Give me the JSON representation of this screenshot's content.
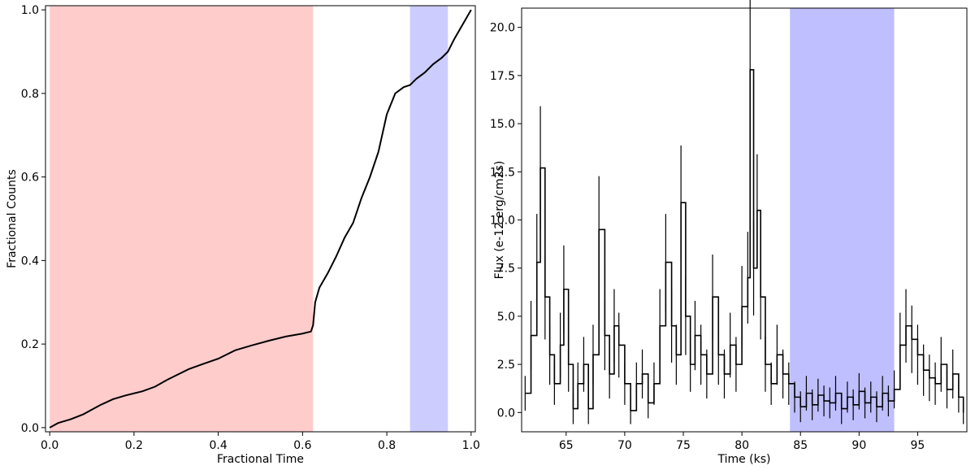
{
  "chart_data": [
    {
      "type": "line",
      "xlabel": "Fractional Time",
      "ylabel": "Fractional Counts",
      "xlim": [
        -0.01,
        1.01
      ],
      "ylim": [
        -0.01,
        1.01
      ],
      "xticks": [
        0.0,
        0.2,
        0.4,
        0.6,
        0.8,
        1.0
      ],
      "xtick_labels": [
        "0.0",
        "0.2",
        "0.4",
        "0.6",
        "0.8",
        "1.0"
      ],
      "yticks": [
        0.0,
        0.2,
        0.4,
        0.6,
        0.8,
        1.0
      ],
      "ytick_labels": [
        "0.0",
        "0.2",
        "0.4",
        "0.6",
        "0.8",
        "1.0"
      ],
      "grid": false,
      "shaded_regions": [
        {
          "x0": 0.0,
          "x1": 0.625,
          "color": "#ff0000",
          "alpha": 0.2
        },
        {
          "x0": 0.855,
          "x1": 0.945,
          "color": "#0000ff",
          "alpha": 0.2
        }
      ],
      "line_color": "#000000",
      "series_points": [
        [
          0.0,
          0.0
        ],
        [
          0.02,
          0.011
        ],
        [
          0.05,
          0.02
        ],
        [
          0.08,
          0.032
        ],
        [
          0.1,
          0.043
        ],
        [
          0.12,
          0.054
        ],
        [
          0.15,
          0.068
        ],
        [
          0.18,
          0.077
        ],
        [
          0.2,
          0.082
        ],
        [
          0.22,
          0.087
        ],
        [
          0.25,
          0.098
        ],
        [
          0.28,
          0.115
        ],
        [
          0.3,
          0.125
        ],
        [
          0.33,
          0.14
        ],
        [
          0.36,
          0.151
        ],
        [
          0.4,
          0.165
        ],
        [
          0.44,
          0.185
        ],
        [
          0.48,
          0.197
        ],
        [
          0.52,
          0.208
        ],
        [
          0.56,
          0.218
        ],
        [
          0.6,
          0.225
        ],
        [
          0.62,
          0.23
        ],
        [
          0.625,
          0.245
        ],
        [
          0.63,
          0.3
        ],
        [
          0.64,
          0.335
        ],
        [
          0.66,
          0.37
        ],
        [
          0.68,
          0.41
        ],
        [
          0.7,
          0.455
        ],
        [
          0.72,
          0.49
        ],
        [
          0.74,
          0.55
        ],
        [
          0.76,
          0.6
        ],
        [
          0.78,
          0.66
        ],
        [
          0.8,
          0.75
        ],
        [
          0.82,
          0.8
        ],
        [
          0.84,
          0.815
        ],
        [
          0.855,
          0.82
        ],
        [
          0.87,
          0.835
        ],
        [
          0.89,
          0.85
        ],
        [
          0.91,
          0.87
        ],
        [
          0.93,
          0.885
        ],
        [
          0.945,
          0.9
        ],
        [
          0.96,
          0.93
        ],
        [
          0.98,
          0.965
        ],
        [
          1.0,
          1.0
        ]
      ]
    },
    {
      "type": "line",
      "xlabel": "Time (ks)",
      "ylabel": "Flux (e-12 erg/cm2s)",
      "xlim": [
        61.2,
        99.2
      ],
      "ylim": [
        -1.0,
        21.0
      ],
      "xticks": [
        65,
        70,
        75,
        80,
        85,
        90,
        95
      ],
      "xtick_labels": [
        "65",
        "70",
        "75",
        "80",
        "85",
        "90",
        "95"
      ],
      "yticks": [
        0.0,
        2.5,
        5.0,
        7.5,
        10.0,
        12.5,
        15.0,
        17.5,
        20.0
      ],
      "ytick_labels": [
        "0.0",
        "2.5",
        "5.0",
        "7.5",
        "10.0",
        "12.5",
        "15.0",
        "17.5",
        "20.0"
      ],
      "grid": false,
      "shaded_regions": [
        {
          "x0": 84.1,
          "x1": 93.0,
          "color": "#0000ff",
          "alpha": 0.25
        }
      ],
      "line_color": "#000000",
      "series_points": [
        [
          61.5,
          1.0
        ],
        [
          62.0,
          4.0
        ],
        [
          62.5,
          7.8
        ],
        [
          62.8,
          12.7
        ],
        [
          63.2,
          6.0
        ],
        [
          63.6,
          3.0
        ],
        [
          64.0,
          1.5
        ],
        [
          64.5,
          3.5
        ],
        [
          64.8,
          6.4
        ],
        [
          65.2,
          2.5
        ],
        [
          65.6,
          0.2
        ],
        [
          66.0,
          1.5
        ],
        [
          66.5,
          2.5
        ],
        [
          66.9,
          0.2
        ],
        [
          67.3,
          3.0
        ],
        [
          67.8,
          9.5
        ],
        [
          68.3,
          4.0
        ],
        [
          68.7,
          2.0
        ],
        [
          69.1,
          4.5
        ],
        [
          69.5,
          3.5
        ],
        [
          70.0,
          1.5
        ],
        [
          70.5,
          0.1
        ],
        [
          71.0,
          1.5
        ],
        [
          71.5,
          2.0
        ],
        [
          72.0,
          0.5
        ],
        [
          72.5,
          1.5
        ],
        [
          73.0,
          4.5
        ],
        [
          73.5,
          7.8
        ],
        [
          74.0,
          4.5
        ],
        [
          74.4,
          3.0
        ],
        [
          74.8,
          10.9
        ],
        [
          75.2,
          5.0
        ],
        [
          75.6,
          2.5
        ],
        [
          76.0,
          4.0
        ],
        [
          76.5,
          3.0
        ],
        [
          77.0,
          2.0
        ],
        [
          77.5,
          6.0
        ],
        [
          78.0,
          3.0
        ],
        [
          78.5,
          2.0
        ],
        [
          79.0,
          3.5
        ],
        [
          79.5,
          2.5
        ],
        [
          80.0,
          5.5
        ],
        [
          80.5,
          7.0
        ],
        [
          80.7,
          17.8
        ],
        [
          81.0,
          7.5
        ],
        [
          81.3,
          10.5
        ],
        [
          81.6,
          6.0
        ],
        [
          82.0,
          2.5
        ],
        [
          82.5,
          1.5
        ],
        [
          83.0,
          3.0
        ],
        [
          83.5,
          2.0
        ],
        [
          84.0,
          1.5
        ],
        [
          84.5,
          0.8
        ],
        [
          85.0,
          0.3
        ],
        [
          85.5,
          1.0
        ],
        [
          86.0,
          0.4
        ],
        [
          86.5,
          0.9
        ],
        [
          87.0,
          0.6
        ],
        [
          87.5,
          0.5
        ],
        [
          88.0,
          1.0
        ],
        [
          88.5,
          0.2
        ],
        [
          89.0,
          0.8
        ],
        [
          89.5,
          0.4
        ],
        [
          90.0,
          1.1
        ],
        [
          90.5,
          0.5
        ],
        [
          91.0,
          0.8
        ],
        [
          91.5,
          0.3
        ],
        [
          92.0,
          1.0
        ],
        [
          92.5,
          0.6
        ],
        [
          93.0,
          1.2
        ],
        [
          93.5,
          3.5
        ],
        [
          94.0,
          4.5
        ],
        [
          94.5,
          3.8
        ],
        [
          95.0,
          3.0
        ],
        [
          95.5,
          2.2
        ],
        [
          96.0,
          1.8
        ],
        [
          96.5,
          1.5
        ],
        [
          97.0,
          2.5
        ],
        [
          97.5,
          1.2
        ],
        [
          98.0,
          2.0
        ],
        [
          98.5,
          0.8
        ],
        [
          98.9,
          0.0
        ]
      ]
    }
  ]
}
